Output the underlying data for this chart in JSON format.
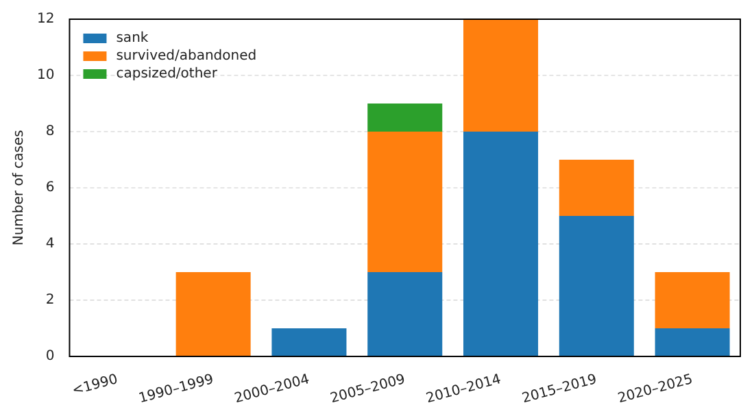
{
  "chart_data": {
    "type": "bar",
    "stacked": true,
    "ylabel": "Number of cases",
    "categories": [
      "<1990",
      "1990–1999",
      "2000–2004",
      "2005–2009",
      "2010–2014",
      "2015–2019",
      "2020–2025"
    ],
    "series": [
      {
        "name": "sank",
        "color": "#1f77b4",
        "values": [
          0,
          0,
          1,
          3,
          8,
          5,
          1
        ]
      },
      {
        "name": "survived/abandoned",
        "color": "#ff7f0e",
        "values": [
          0,
          3,
          0,
          5,
          4,
          2,
          2
        ]
      },
      {
        "name": "capsized/other",
        "color": "#2ca02c",
        "values": [
          0,
          0,
          0,
          1,
          0,
          0,
          0
        ]
      }
    ],
    "ylim": [
      0,
      12
    ],
    "yticks": [
      0,
      2,
      4,
      6,
      8,
      10,
      12
    ],
    "grid": "y",
    "legend": "top left"
  }
}
